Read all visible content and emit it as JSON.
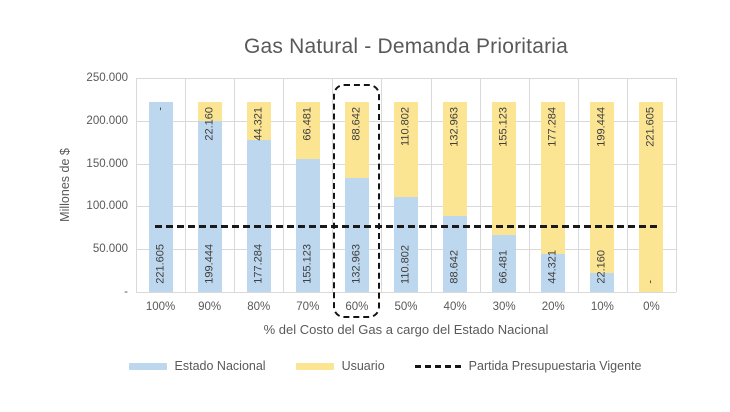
{
  "title": "Gas Natural - Demanda Prioritaria",
  "chart_data": {
    "type": "bar",
    "stacked": true,
    "title": "Gas Natural - Demanda Prioritaria",
    "xlabel": "% del Costo del Gas a cargo del Estado Nacional",
    "ylabel": "Millones de $",
    "ylim": [
      0,
      250000
    ],
    "ytick_labels": [
      "250.000",
      "200.000",
      "150.000",
      "100.000",
      "50.000",
      "-"
    ],
    "grid": true,
    "legend_position": "bottom",
    "categories": [
      "100%",
      "90%",
      "80%",
      "70%",
      "60%",
      "50%",
      "40%",
      "30%",
      "20%",
      "10%",
      "0%"
    ],
    "series": [
      {
        "name": "Estado Nacional",
        "color": "#BDD7EE",
        "values": [
          221605,
          199444,
          177284,
          155123,
          132963,
          110802,
          88642,
          66481,
          44321,
          22160,
          0
        ],
        "data_labels": [
          "221.605",
          "199.444",
          "177.284",
          "155.123",
          "132.963",
          "110.802",
          "88.642",
          "66.481",
          "44.321",
          "22.160",
          "-"
        ]
      },
      {
        "name": "Usuario",
        "color": "#FBE492",
        "values": [
          0,
          22160,
          44321,
          66481,
          88642,
          110802,
          132963,
          155123,
          177284,
          199444,
          221605
        ],
        "data_labels": [
          "-",
          "22.160",
          "44.321",
          "66.481",
          "88.642",
          "110.802",
          "132.963",
          "155.123",
          "177.284",
          "199.444",
          "221.605"
        ]
      }
    ],
    "reference_line": {
      "label": "Partida Presupuestaria Vigente",
      "value_estimate": 77000,
      "style": "dashed",
      "color": "#1A1A1A"
    },
    "highlighted_category": "60%"
  },
  "legend": {
    "items": [
      {
        "label": "Estado Nacional",
        "swatch": "bar",
        "color": "#BDD7EE"
      },
      {
        "label": "Usuario",
        "swatch": "bar",
        "color": "#FBE492"
      },
      {
        "label": "Partida Presupuestaria Vigente",
        "swatch": "dashed-line",
        "color": "#141414"
      }
    ]
  },
  "colors": {
    "text_muted": "#595959",
    "data_label": "#3F3F3F",
    "gridline": "#D9D9D9",
    "background": "#FFFFFF"
  }
}
